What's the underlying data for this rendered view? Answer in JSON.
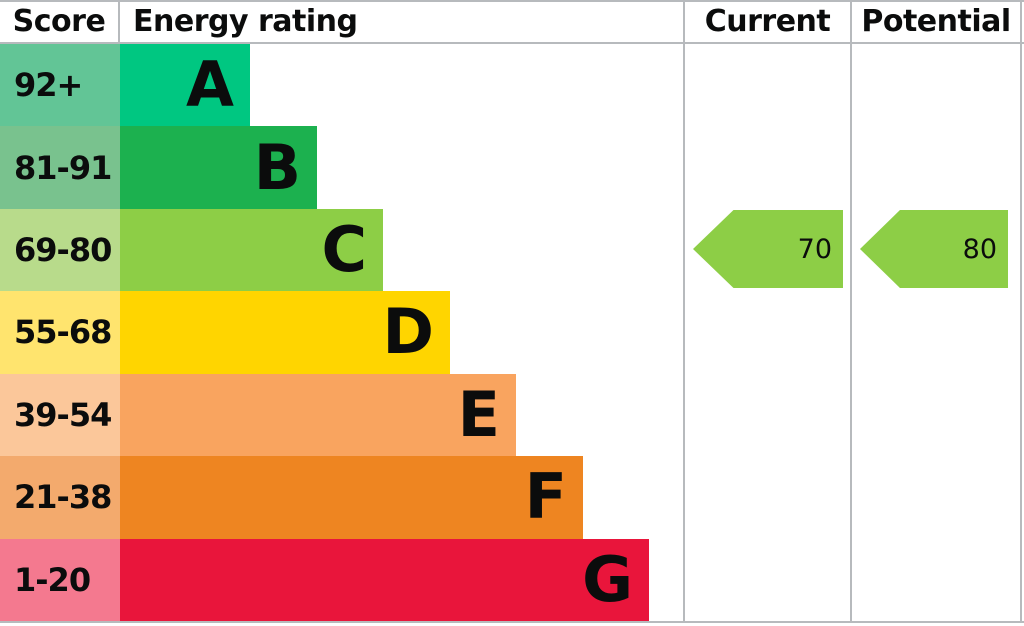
{
  "header": {
    "score": "Score",
    "energy_rating": "Energy rating",
    "current": "Current",
    "potential": "Potential"
  },
  "bands": [
    {
      "letter": "A",
      "score": "92+",
      "bar_color": "#00c781",
      "score_cell_color": "#62c596"
    },
    {
      "letter": "B",
      "score": "81-91",
      "bar_color": "#1cb14f",
      "score_cell_color": "#79c28e"
    },
    {
      "letter": "C",
      "score": "69-80",
      "bar_color": "#8dce46",
      "score_cell_color": "#b8db8b"
    },
    {
      "letter": "D",
      "score": "55-68",
      "bar_color": "#ffd500",
      "score_cell_color": "#ffe46e"
    },
    {
      "letter": "E",
      "score": "39-54",
      "bar_color": "#f9a45f",
      "score_cell_color": "#fbc79a"
    },
    {
      "letter": "F",
      "score": "21-38",
      "bar_color": "#ee8521",
      "score_cell_color": "#f3aa6d"
    },
    {
      "letter": "G",
      "score": "1-20",
      "bar_color": "#e9153b",
      "score_cell_color": "#f4798f"
    }
  ],
  "current": {
    "value": "70",
    "band": "C"
  },
  "potential": {
    "value": "80",
    "band": "C"
  },
  "colors": {
    "arrow": "#8dce46",
    "grid": "#b7babd",
    "text": "#0b0c0c"
  },
  "chart_data": {
    "type": "bar",
    "title": "Energy rating",
    "categories": [
      "A",
      "B",
      "C",
      "D",
      "E",
      "F",
      "G"
    ],
    "score_ranges": [
      "92+",
      "81-91",
      "69-80",
      "55-68",
      "39-54",
      "21-38",
      "1-20"
    ],
    "band_colors": [
      "#00c781",
      "#1cb14f",
      "#8dce46",
      "#ffd500",
      "#f9a45f",
      "#ee8521",
      "#e9153b"
    ],
    "values": [
      1,
      2,
      3,
      4,
      5,
      6,
      7
    ],
    "columns": [
      "Score",
      "Energy rating",
      "Current",
      "Potential"
    ],
    "current_rating": 70,
    "current_band": "C",
    "potential_rating": 80,
    "potential_band": "C",
    "legend_position": "none",
    "grid": false
  }
}
